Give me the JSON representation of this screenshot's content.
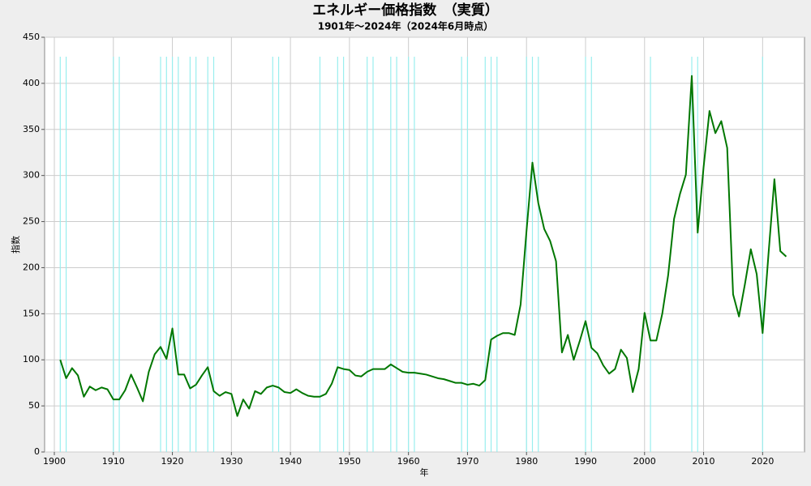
{
  "chart_data": {
    "type": "line",
    "title": "エネルギー価格指数　（実質）",
    "subtitle": "1901年～2024年（2024年6月時点）",
    "x_label": "年",
    "y_label": "指数",
    "x": [
      1901,
      1902,
      1903,
      1904,
      1905,
      1906,
      1907,
      1908,
      1909,
      1910,
      1911,
      1912,
      1913,
      1914,
      1915,
      1916,
      1917,
      1918,
      1919,
      1920,
      1921,
      1922,
      1923,
      1924,
      1925,
      1926,
      1927,
      1928,
      1929,
      1930,
      1931,
      1932,
      1933,
      1934,
      1935,
      1936,
      1937,
      1938,
      1939,
      1940,
      1941,
      1942,
      1943,
      1944,
      1945,
      1946,
      1947,
      1948,
      1949,
      1950,
      1951,
      1952,
      1953,
      1954,
      1955,
      1956,
      1957,
      1958,
      1959,
      1960,
      1961,
      1962,
      1963,
      1964,
      1965,
      1966,
      1967,
      1968,
      1969,
      1970,
      1971,
      1972,
      1973,
      1974,
      1975,
      1976,
      1977,
      1978,
      1979,
      1980,
      1981,
      1982,
      1983,
      1984,
      1985,
      1986,
      1987,
      1988,
      1989,
      1990,
      1991,
      1992,
      1993,
      1994,
      1995,
      1996,
      1997,
      1998,
      1999,
      2000,
      2001,
      2002,
      2003,
      2004,
      2005,
      2006,
      2007,
      2008,
      2009,
      2010,
      2011,
      2012,
      2013,
      2014,
      2015,
      2016,
      2017,
      2018,
      2019,
      2020,
      2021,
      2022,
      2023,
      2024
    ],
    "series": [
      {
        "name": "エネルギー価格指数",
        "color": "#007700",
        "values": [
          100,
          80,
          91,
          83,
          60,
          71,
          67,
          70,
          68,
          57,
          57,
          67,
          84,
          70,
          55,
          87,
          106,
          114,
          101,
          134,
          84,
          84,
          69,
          73,
          83,
          92,
          66,
          61,
          65,
          63,
          39,
          57,
          47,
          66,
          63,
          70,
          72,
          70,
          65,
          64,
          68,
          64,
          61,
          60,
          60,
          63,
          74,
          92,
          90,
          89,
          83,
          82,
          87,
          90,
          90,
          90,
          95,
          91,
          87,
          86,
          86,
          85,
          84,
          82,
          80,
          79,
          77,
          75,
          75,
          73,
          74,
          72,
          78,
          122,
          126,
          129,
          129,
          127,
          160,
          240,
          314,
          270,
          242,
          229,
          207,
          108,
          127,
          100,
          120,
          142,
          113,
          107,
          94,
          85,
          90,
          111,
          102,
          65,
          90,
          151,
          121,
          121,
          150,
          192,
          253,
          280,
          301,
          408,
          238,
          309,
          370,
          346,
          359,
          330,
          171,
          147,
          182,
          220,
          193,
          129,
          215,
          296,
          218,
          212
        ]
      }
    ],
    "markers_x": [
      1901,
      1902,
      1910,
      1911,
      1918,
      1919,
      1920,
      1921,
      1923,
      1924,
      1926,
      1927,
      1937,
      1938,
      1945,
      1948,
      1949,
      1953,
      1954,
      1957,
      1958,
      1960,
      1961,
      1969,
      1970,
      1973,
      1974,
      1975,
      1980,
      1981,
      1982,
      1990,
      1991,
      2001,
      2008,
      2009,
      2020
    ],
    "markers_color": "#99eeee",
    "xlim": [
      1898.35,
      2027.1
    ],
    "ylim": [
      0,
      450
    ],
    "xticks": [
      1900,
      1910,
      1920,
      1930,
      1940,
      1950,
      1960,
      1970,
      1980,
      1990,
      2000,
      2010,
      2020
    ],
    "yticks": [
      0,
      50,
      100,
      150,
      200,
      250,
      300,
      350,
      400,
      450
    ],
    "grid": true,
    "legend": false
  }
}
